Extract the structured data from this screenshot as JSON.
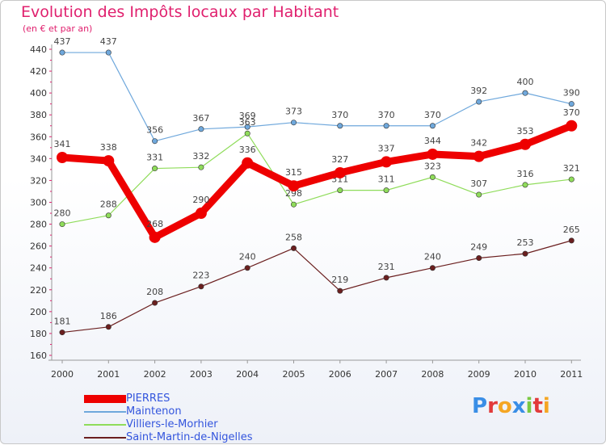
{
  "chart_data": {
    "type": "line",
    "title": "Evolution des Impôts locaux par Habitant",
    "subtitle": "(en € et par an)",
    "xlabel": "",
    "ylabel": "",
    "ylim": [
      160,
      440
    ],
    "yticks": [
      160,
      180,
      200,
      220,
      240,
      260,
      280,
      300,
      320,
      340,
      360,
      380,
      400,
      420,
      440
    ],
    "categories": [
      "2000",
      "2001",
      "2002",
      "2003",
      "2004",
      "2005",
      "2006",
      "2007",
      "2008",
      "2009",
      "2010",
      "2011"
    ],
    "series": [
      {
        "name": "Maintenon",
        "color": "#6fa8dc",
        "values": [
          437,
          437,
          356,
          367,
          369,
          373,
          370,
          370,
          370,
          392,
          400,
          390
        ]
      },
      {
        "name": "Villiers-le-Morhier",
        "color": "#8fdc5a",
        "values": [
          280,
          288,
          331,
          332,
          363,
          298,
          311,
          311,
          323,
          307,
          316,
          321
        ]
      },
      {
        "name": "Saint-Martin-de-Nigelles",
        "color": "#6b1f1f",
        "values": [
          181,
          186,
          208,
          223,
          240,
          258,
          219,
          231,
          240,
          249,
          253,
          265
        ]
      },
      {
        "name": "PIERRES",
        "color": "#ee0000",
        "values": [
          341,
          338,
          268,
          290,
          336,
          315,
          327,
          337,
          344,
          342,
          353,
          370
        ]
      }
    ],
    "legend": [
      "PIERRES",
      "Maintenon",
      "Villiers-le-Morhier",
      "Saint-Martin-de-Nigelles"
    ],
    "grid": false
  },
  "logo": {
    "letters": [
      "P",
      "r",
      "o",
      "x",
      "i",
      "t",
      "i"
    ],
    "colors": [
      "#3a8ee6",
      "#e23a3a",
      "#f5a623",
      "#3a8ee6",
      "#7ac943",
      "#e23a3a",
      "#f5a623"
    ]
  }
}
